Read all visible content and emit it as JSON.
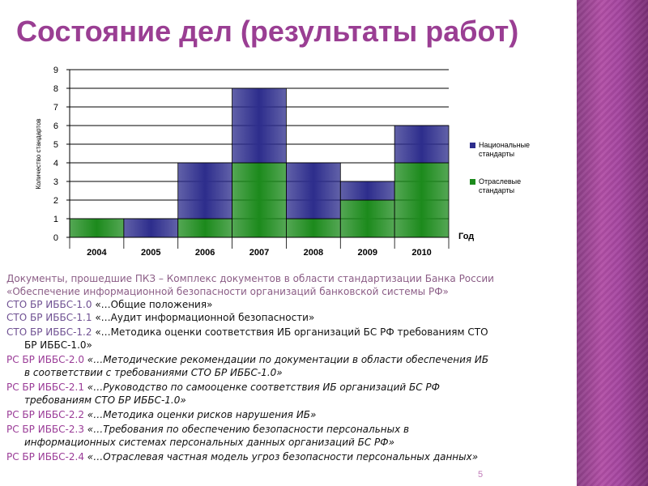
{
  "title": "Состояние дел (результаты работ)",
  "chart_data": {
    "type": "bar",
    "stacked": true,
    "categories": [
      "2004",
      "2005",
      "2006",
      "2007",
      "2008",
      "2009",
      "2010"
    ],
    "series": [
      {
        "name": "Отраслевые стандарты",
        "values": [
          1,
          0,
          1,
          4,
          1,
          2,
          4
        ],
        "color": "#1c8a1c"
      },
      {
        "name": "Национальные стандарты",
        "values": [
          0,
          1,
          3,
          4,
          3,
          1,
          2
        ],
        "color": "#2d2d8c"
      }
    ],
    "ylabel": "Количество стандартов",
    "xlabel": "Год",
    "ylim": [
      0,
      9
    ],
    "yticks": [
      "0",
      "1",
      "2",
      "3",
      "4",
      "5",
      "6",
      "7",
      "8",
      "9"
    ],
    "grid": true,
    "legend_position": "right",
    "legend": [
      {
        "label_line1": "Национальные",
        "label_line2": "стандарты",
        "color": "#2d2d8c"
      },
      {
        "label_line1": "Отраслевые",
        "label_line2": "стандарты",
        "color": "#1c8a1c"
      }
    ]
  },
  "intro": {
    "line1": "Документы, прошедшие ПКЗ – Комплекс документов в области стандартизации Банка России",
    "line2": "«Обеспечение информационной безопасности организаций банковской системы РФ»"
  },
  "docs": [
    {
      "code": "СТО БР ИББС-1.0",
      "desc": "«…Общие положения»",
      "desc2": ""
    },
    {
      "code": "СТО БР ИББС-1.1",
      "desc": "«…Аудит информационной безопасности»",
      "desc2": ""
    },
    {
      "code": "СТО БР ИББС-1.2",
      "desc": "«…Методика оценки соответствия ИБ организаций БС РФ требованиям СТО",
      "desc2": "БР ИББС-1.0»"
    },
    {
      "code": "РС БР ИББС-2.0",
      "desc": "«…Методические рекомендации по документации в области обеспечения ИБ",
      "desc2": "в соответствии с требованиями СТО БР ИББС-1.0»"
    },
    {
      "code": "РС БР ИББС-2.1",
      "desc": "«…Руководство по самооценке соответствия ИБ организаций БС РФ",
      "desc2": "требованиям СТО БР ИББС-1.0»"
    },
    {
      "code": "РС БР ИББС-2.2",
      "desc": "«…Методика оценки рисков нарушения ИБ»",
      "desc2": ""
    },
    {
      "code": "РС БР ИББС-2.3",
      "desc": "«…Требования по обеспечению безопасности персональных в",
      "desc2": "информационных системах персональных данных организаций БС РФ»"
    },
    {
      "code": "РС БР ИББС-2.4",
      "desc": "«…Отраслевая частная модель угроз безопасности персональных данных»",
      "desc2": ""
    }
  ],
  "page_number": "5"
}
